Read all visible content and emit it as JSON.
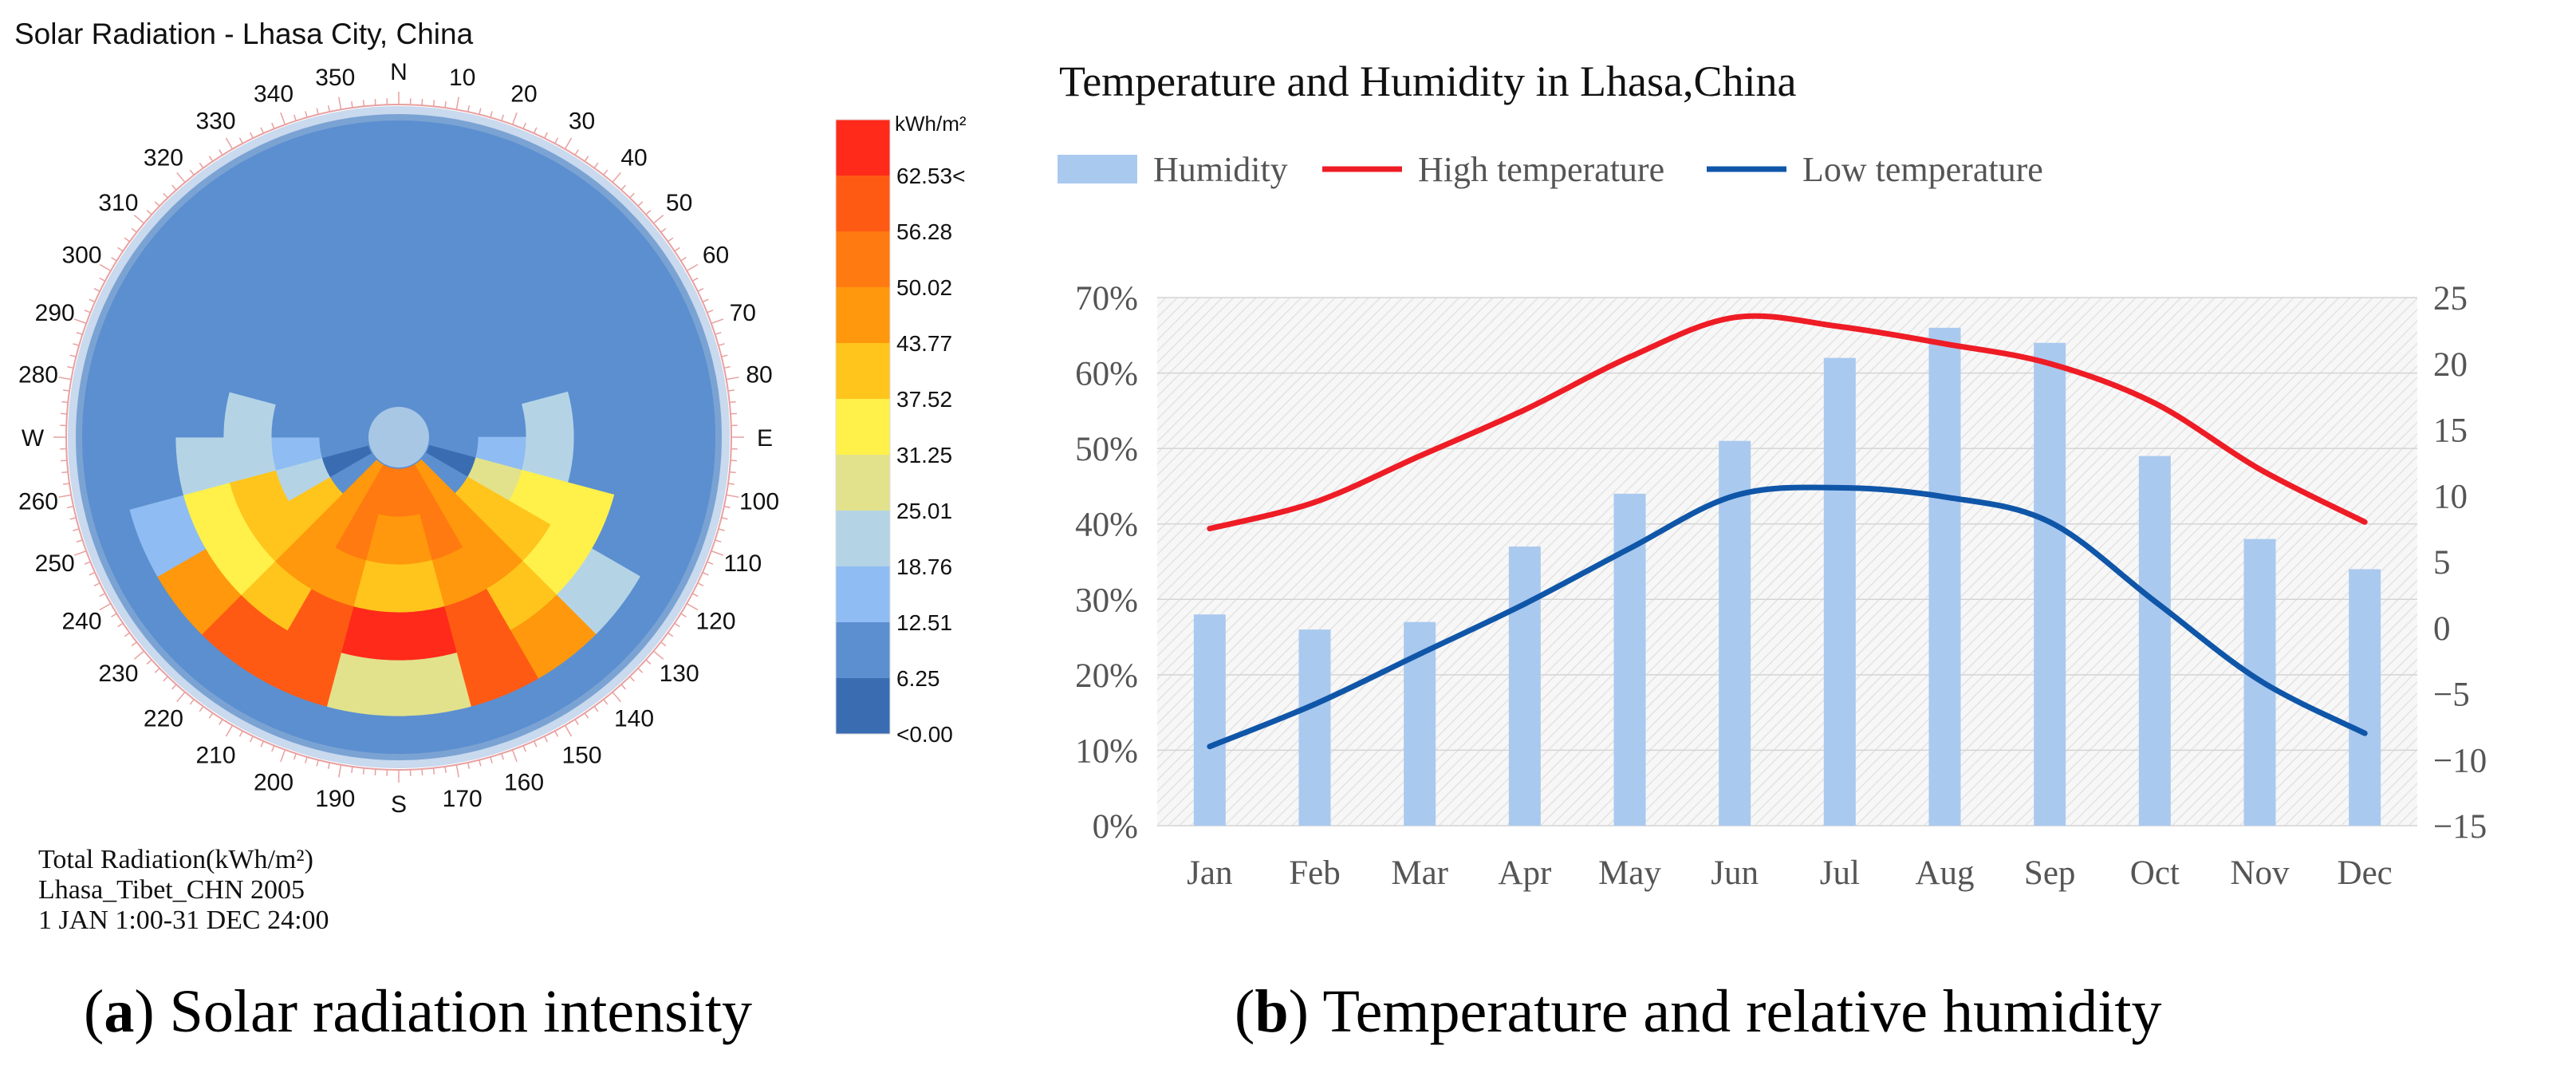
{
  "chart_data": [
    {
      "type": "heatmap",
      "title": "Solar Radiation - Lhasa City, China",
      "projection": "polar sky dome (azimuth rings)",
      "cardinal_labels": [
        "N",
        "E",
        "S",
        "W"
      ],
      "azimuth_labels": [
        "10",
        "20",
        "30",
        "40",
        "50",
        "60",
        "70",
        "80",
        "100",
        "110",
        "120",
        "130",
        "140",
        "150",
        "160",
        "170",
        "190",
        "200",
        "210",
        "220",
        "230",
        "240",
        "250",
        "260",
        "280",
        "290",
        "300",
        "310",
        "320",
        "330",
        "340",
        "350"
      ],
      "legend": {
        "unit": "kWh/m²",
        "levels": [
          "62.53<",
          "56.28",
          "50.02",
          "43.77",
          "37.52",
          "31.25",
          "25.01",
          "18.76",
          "12.51",
          "6.25",
          "<0.00"
        ],
        "colors": [
          "#ff2a1a",
          "#ff5a14",
          "#ff7a10",
          "#ff980c",
          "#ffc51c",
          "#fff04a",
          "#e2e28c",
          "#b4d4e6",
          "#8fbcf2",
          "#5c8fd0",
          "#3a6cb2"
        ]
      },
      "notes": [
        "Total Radiation(kWh/m²)",
        "Lhasa_Tibet_CHN 2005",
        "1 JAN 1:00-31 DEC 24:00"
      ],
      "grid": {
        "sector_step_deg": 15,
        "rings_from_center": [
          [
            9,
            9,
            9,
            9,
            9,
            9,
            9,
            9,
            9,
            9,
            9,
            9,
            9,
            9,
            9,
            9,
            9,
            9,
            9,
            9,
            9,
            9,
            9,
            9
          ],
          [
            9,
            9,
            9,
            9,
            9,
            9,
            9,
            10,
            9,
            3,
            2,
            2,
            2,
            2,
            3,
            9,
            10,
            9,
            9,
            9,
            9,
            9,
            9,
            9
          ],
          [
            9,
            9,
            9,
            9,
            9,
            9,
            8,
            6,
            4,
            3,
            2,
            3,
            3,
            2,
            3,
            4,
            7,
            8,
            9,
            9,
            9,
            9,
            9,
            9
          ],
          [
            9,
            9,
            9,
            9,
            9,
            7,
            7,
            5,
            4,
            3,
            3,
            4,
            4,
            3,
            3,
            4,
            4,
            7,
            7,
            9,
            9,
            9,
            9,
            9
          ],
          [
            9,
            9,
            9,
            9,
            9,
            9,
            9,
            5,
            5,
            4,
            1,
            0,
            0,
            1,
            4,
            5,
            5,
            7,
            9,
            9,
            9,
            9,
            9,
            9
          ],
          [
            9,
            9,
            9,
            9,
            9,
            9,
            9,
            9,
            7,
            3,
            1,
            6,
            6,
            1,
            1,
            3,
            8,
            9,
            9,
            9,
            9,
            9,
            9,
            9
          ],
          [
            9,
            9,
            9,
            9,
            9,
            9,
            9,
            9,
            9,
            9,
            9,
            9,
            9,
            9,
            9,
            9,
            9,
            9,
            9,
            9,
            9,
            9,
            9,
            9
          ]
        ]
      }
    },
    {
      "type": "bar+line",
      "title": "Temperature and Humidity in Lhasa,China",
      "categories": [
        "Jan",
        "Feb",
        "Mar",
        "Apr",
        "May",
        "Jun",
        "Jul",
        "Aug",
        "Sep",
        "Oct",
        "Nov",
        "Dec"
      ],
      "series": [
        {
          "name": "Humidity",
          "type": "bar",
          "axis": "left",
          "color": "#aac9ef",
          "values": [
            28,
            26,
            27,
            37,
            44,
            51,
            62,
            66,
            64,
            49,
            38,
            34
          ]
        },
        {
          "name": "High temperature",
          "type": "line",
          "axis": "right",
          "color": "#ee1c25",
          "values": [
            7.5,
            9.5,
            13,
            16.5,
            20.5,
            23.5,
            22.8,
            21.5,
            20,
            17,
            12,
            8
          ]
        },
        {
          "name": "Low temperature",
          "type": "line",
          "axis": "right",
          "color": "#0f56a8",
          "values": [
            -9,
            -5.8,
            -2,
            1.8,
            6,
            10,
            10.6,
            9.9,
            8,
            2,
            -4,
            -8
          ]
        }
      ],
      "y_left": {
        "ticks": [
          "0%",
          "10%",
          "20%",
          "30%",
          "40%",
          "50%",
          "60%",
          "70%"
        ],
        "range": [
          0,
          70
        ]
      },
      "y_right": {
        "ticks": [
          "25",
          "20",
          "15",
          "10",
          "5",
          "0",
          "−5",
          "−10",
          "−15"
        ],
        "range": [
          -15,
          25
        ]
      },
      "legend_placement": "top"
    }
  ],
  "captions": [
    {
      "label": "a",
      "text": "Solar radiation intensity"
    },
    {
      "label": "b",
      "text": "Temperature and relative humidity"
    }
  ]
}
